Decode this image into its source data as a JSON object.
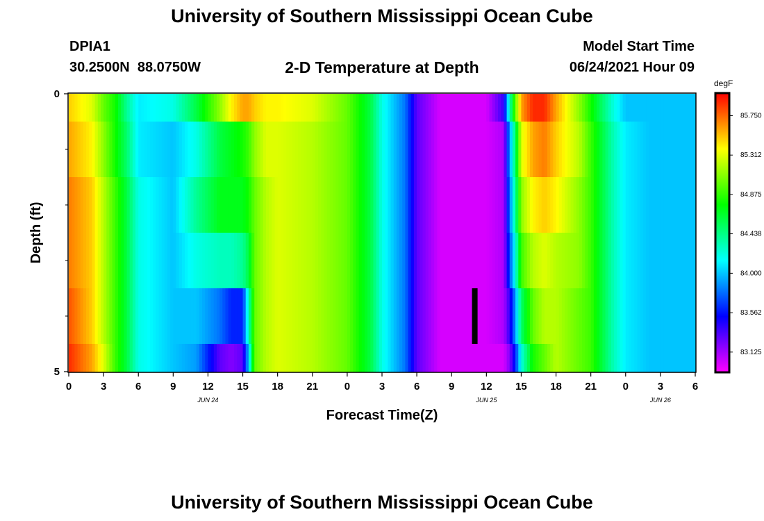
{
  "page": {
    "title": "University of Southern Mississippi Ocean Cube",
    "footer_title": "University of Southern Mississippi Ocean Cube"
  },
  "header": {
    "station_id": "DPIA1",
    "coordinates": "30.2500N  88.0750W",
    "plot_title": "2-D Temperature at Depth",
    "model_start_label": "Model Start Time",
    "model_start_value": "06/24/2021 Hour 09"
  },
  "chart_data": {
    "type": "heatmap",
    "title": "2-D Temperature at Depth",
    "xlabel": "Forecast Time(Z)",
    "ylabel": "Depth (ft)",
    "x_range_hours": [
      0,
      54
    ],
    "ylim": [
      0,
      5
    ],
    "x_ticks": [
      {
        "hour": 0,
        "label": "0"
      },
      {
        "hour": 3,
        "label": "3"
      },
      {
        "hour": 6,
        "label": "6"
      },
      {
        "hour": 9,
        "label": "9"
      },
      {
        "hour": 12,
        "label": "12"
      },
      {
        "hour": 15,
        "label": "15"
      },
      {
        "hour": 18,
        "label": "18"
      },
      {
        "hour": 21,
        "label": "21"
      },
      {
        "hour": 24,
        "label": "0"
      },
      {
        "hour": 27,
        "label": "3"
      },
      {
        "hour": 30,
        "label": "6"
      },
      {
        "hour": 33,
        "label": "9"
      },
      {
        "hour": 36,
        "label": "12"
      },
      {
        "hour": 39,
        "label": "15"
      },
      {
        "hour": 42,
        "label": "18"
      },
      {
        "hour": 45,
        "label": "21"
      },
      {
        "hour": 48,
        "label": "0"
      },
      {
        "hour": 51,
        "label": "3"
      },
      {
        "hour": 54,
        "label": "6"
      }
    ],
    "date_labels": [
      {
        "hour": 12,
        "label": "JUN 24"
      },
      {
        "hour": 36,
        "label": "JUN 25"
      },
      {
        "hour": 51,
        "label": "JUN 26"
      }
    ],
    "y_ticks": [
      {
        "depth": 0,
        "label": "0"
      },
      {
        "depth": 5,
        "label": "5"
      }
    ],
    "y_minor_ticks": [
      1,
      2,
      3,
      4
    ],
    "colorbar": {
      "unit": "degF",
      "min": 82.9,
      "max": 86.0,
      "tick_labels": [
        "85.750",
        "85.312",
        "84.875",
        "84.438",
        "84.000",
        "83.562",
        "83.125"
      ],
      "tick_values": [
        85.75,
        85.312,
        84.875,
        84.438,
        84.0,
        83.562,
        83.125
      ]
    },
    "time_marker": {
      "hour": 35,
      "depth_from": 3.5,
      "depth_to": 4.5
    },
    "depth_levels": [
      0,
      0.5,
      1.5,
      2.5,
      3.5,
      4.5,
      5
    ],
    "control_hours": [
      0,
      2,
      3,
      4,
      5,
      6,
      9,
      11,
      13,
      14,
      15,
      15.5,
      16,
      17,
      18,
      21,
      24,
      26,
      27,
      28,
      29,
      30,
      32,
      33,
      36,
      37.5,
      38,
      38.5,
      39,
      40,
      41,
      42,
      44,
      45,
      46,
      47,
      48,
      50,
      52,
      54
    ],
    "values": [
      [
        85.5,
        85.3,
        85.0,
        84.8,
        84.4,
        84.1,
        84.2,
        84.6,
        85.1,
        85.4,
        85.6,
        85.6,
        85.5,
        85.4,
        85.4,
        85.3,
        85.0,
        84.6,
        84.2,
        84.0,
        83.8,
        83.3,
        83.0,
        83.0,
        83.0,
        83.4,
        84.3,
        85.0,
        85.6,
        85.9,
        85.9,
        85.6,
        85.1,
        84.8,
        84.5,
        84.2,
        84.0,
        84.0,
        84.0,
        84.0
      ],
      [
        85.6,
        85.4,
        85.1,
        84.8,
        84.5,
        84.1,
        84.0,
        84.2,
        84.6,
        84.7,
        84.8,
        84.9,
        85.1,
        85.3,
        85.3,
        85.2,
        85.0,
        84.6,
        84.2,
        84.0,
        83.8,
        83.3,
        83.0,
        83.0,
        83.0,
        83.1,
        83.9,
        84.5,
        85.3,
        85.6,
        85.7,
        85.5,
        85.2,
        84.9,
        84.6,
        84.3,
        84.1,
        84.0,
        84.0,
        84.0
      ],
      [
        85.7,
        85.5,
        85.2,
        84.9,
        84.6,
        84.2,
        84.0,
        84.4,
        84.7,
        84.7,
        84.7,
        84.8,
        85.0,
        85.2,
        85.3,
        85.2,
        85.0,
        84.6,
        84.2,
        84.0,
        83.8,
        83.3,
        83.0,
        83.0,
        83.0,
        83.1,
        83.8,
        84.4,
        85.1,
        85.4,
        85.5,
        85.4,
        85.1,
        84.9,
        84.6,
        84.3,
        84.1,
        84.0,
        84.0,
        84.0
      ],
      [
        85.7,
        85.5,
        85.2,
        84.9,
        84.6,
        84.2,
        84.0,
        84.2,
        84.3,
        84.3,
        84.4,
        84.6,
        85.0,
        85.2,
        85.3,
        85.2,
        85.0,
        84.6,
        84.2,
        84.0,
        83.8,
        83.3,
        83.0,
        83.0,
        83.0,
        83.1,
        83.7,
        84.2,
        84.9,
        85.2,
        85.3,
        85.2,
        85.1,
        84.9,
        84.6,
        84.3,
        84.1,
        84.0,
        84.0,
        84.0
      ],
      [
        85.8,
        85.5,
        85.2,
        84.9,
        84.6,
        84.2,
        84.0,
        84.0,
        83.8,
        83.6,
        83.6,
        84.3,
        85.0,
        85.2,
        85.3,
        85.2,
        85.0,
        84.6,
        84.2,
        84.0,
        83.8,
        83.3,
        83.0,
        83.0,
        83.0,
        83.1,
        83.4,
        83.9,
        84.5,
        85.0,
        85.2,
        85.2,
        85.0,
        84.9,
        84.6,
        84.3,
        84.1,
        84.0,
        84.0,
        84.0
      ],
      [
        85.9,
        85.6,
        85.3,
        84.9,
        84.6,
        84.2,
        84.0,
        83.9,
        83.3,
        83.2,
        83.3,
        84.0,
        85.0,
        85.2,
        85.3,
        85.2,
        85.0,
        84.6,
        84.2,
        84.0,
        83.8,
        83.3,
        83.0,
        83.0,
        83.0,
        83.0,
        83.2,
        83.6,
        84.2,
        84.8,
        85.0,
        85.2,
        85.0,
        84.9,
        84.6,
        84.3,
        84.1,
        84.0,
        84.0,
        84.0
      ]
    ]
  }
}
